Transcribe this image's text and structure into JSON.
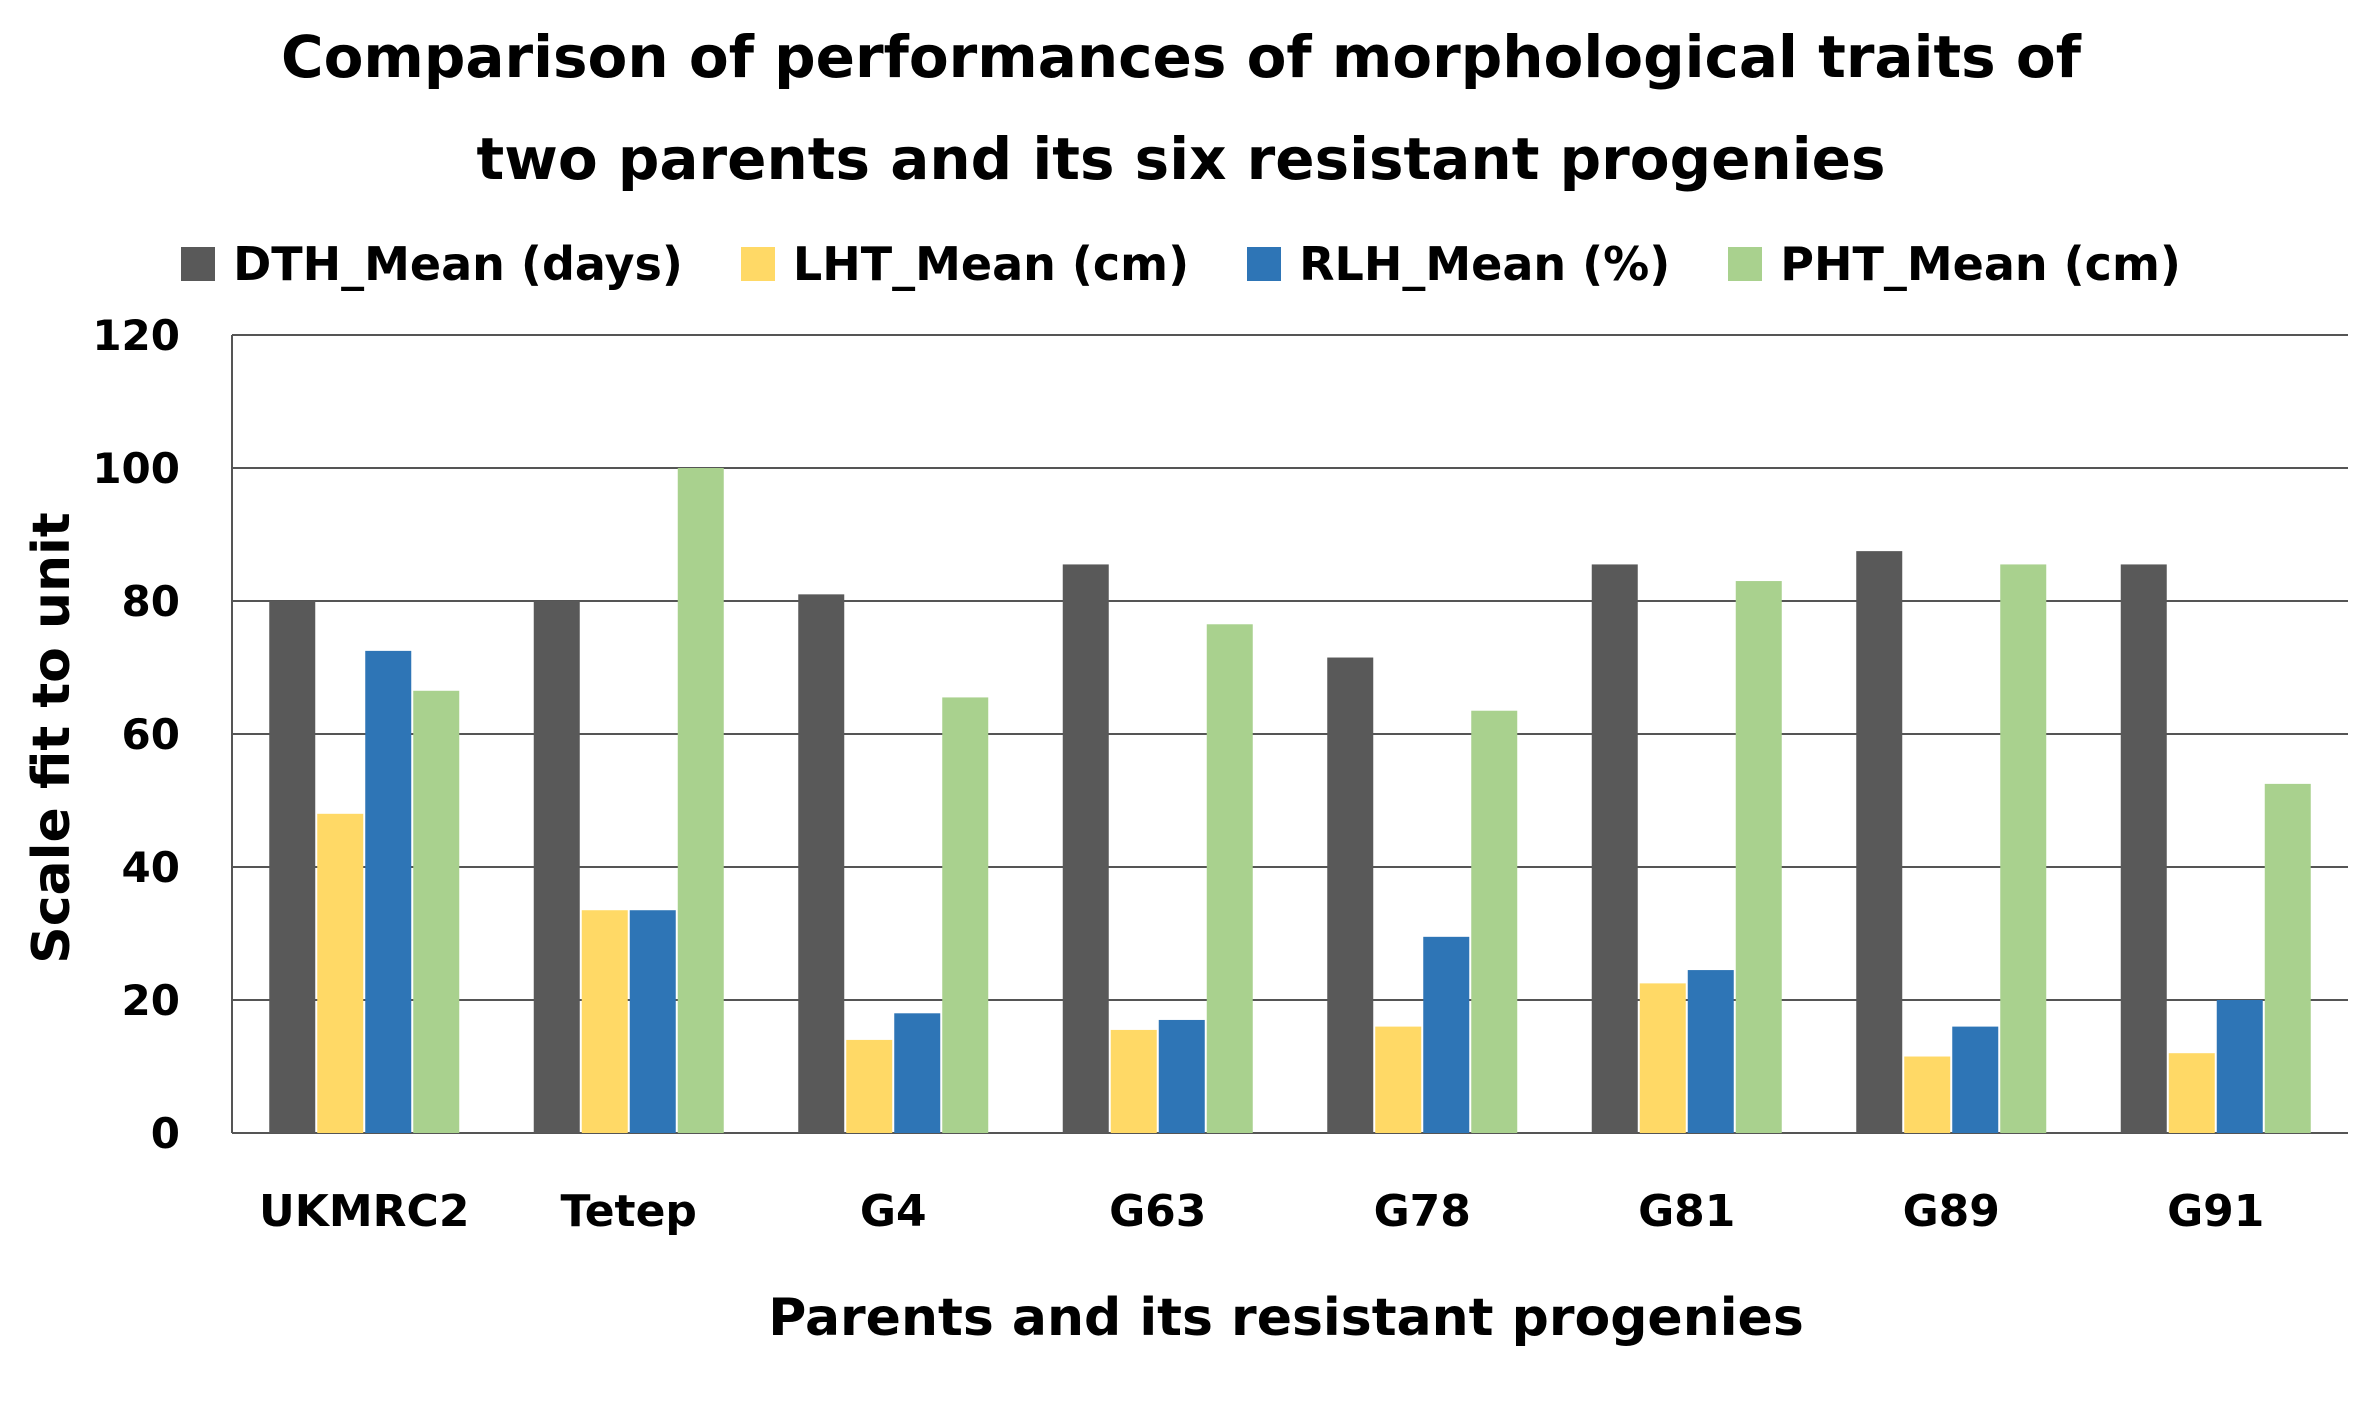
{
  "chart_data": {
    "type": "bar",
    "title_lines": [
      "Comparison of performances of morphological traits of",
      "two parents and its six resistant progenies"
    ],
    "xlabel": "Parents and its resistant progenies",
    "ylabel": "Scale fit to unit",
    "ylim": [
      0,
      120
    ],
    "yticks": [
      0,
      20,
      40,
      60,
      80,
      100,
      120
    ],
    "grid": true,
    "legend_position": "top",
    "categories": [
      "UKMRC2",
      "Tetep",
      "G4",
      "G63",
      "G78",
      "G81",
      "G89",
      "G91"
    ],
    "series": [
      {
        "name": "DTH_Mean (days)",
        "color": "#595959",
        "values": [
          80,
          80,
          81,
          85.5,
          71.5,
          85.5,
          87.5,
          85.5
        ]
      },
      {
        "name": "LHT_Mean (cm)",
        "color": "#FFD966",
        "values": [
          48,
          33.5,
          14,
          15.5,
          16,
          22.5,
          11.5,
          12
        ]
      },
      {
        "name": "RLH_Mean (%)",
        "color": "#2E75B6",
        "values": [
          72.5,
          33.5,
          18,
          17,
          29.5,
          24.5,
          16,
          20
        ]
      },
      {
        "name": "PHT_Mean (cm)",
        "color": "#A9D18E",
        "values": [
          66.5,
          100,
          65.5,
          76.5,
          63.5,
          83,
          85.5,
          52.5
        ]
      }
    ]
  }
}
